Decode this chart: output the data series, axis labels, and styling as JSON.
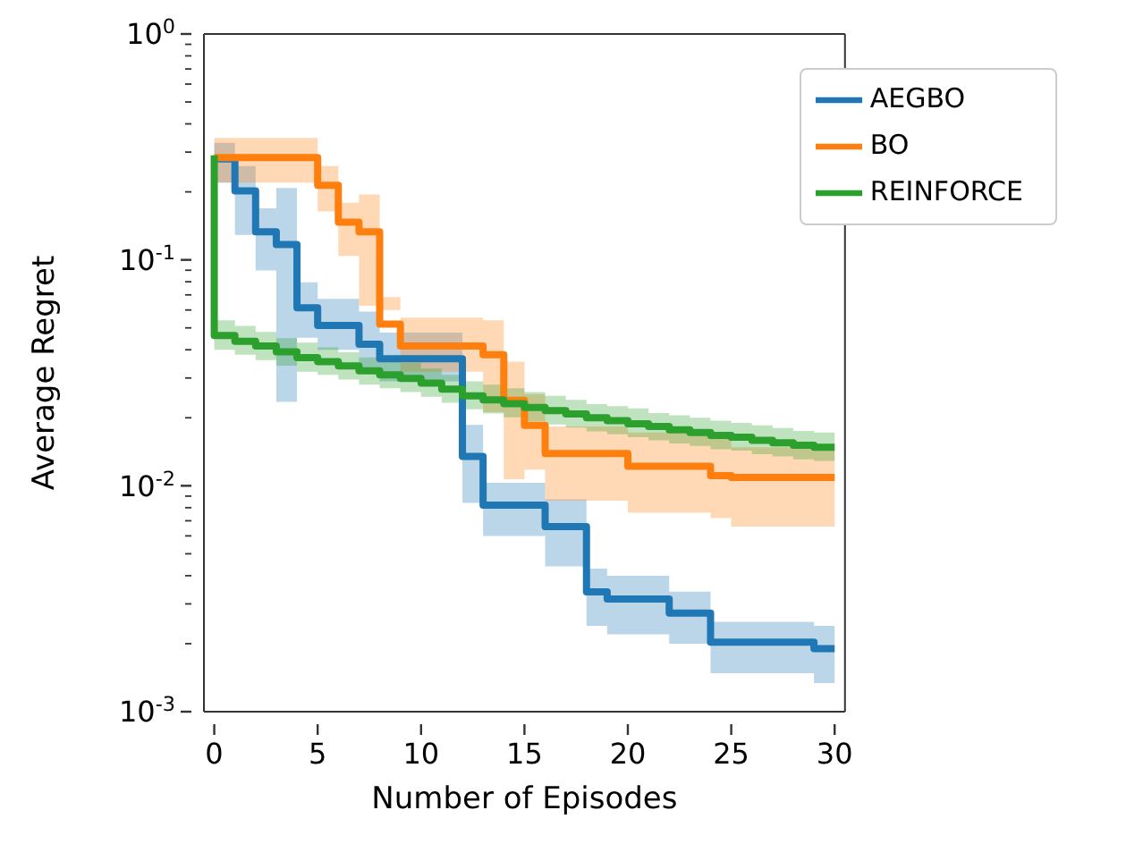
{
  "chart_data": {
    "type": "step",
    "xlabel": "Number of Episodes",
    "ylabel": "Average Regret",
    "x": [
      0,
      1,
      2,
      3,
      4,
      5,
      6,
      7,
      8,
      9,
      10,
      11,
      12,
      13,
      14,
      15,
      16,
      17,
      18,
      19,
      20,
      21,
      22,
      23,
      24,
      25,
      26,
      27,
      28,
      29,
      30
    ],
    "series": [
      {
        "name": "AEGBO",
        "color": "#1f77b4",
        "values": [
          0.28,
          0.2018,
          0.133,
          0.117,
          0.0614,
          0.0513,
          0.0513,
          0.0423,
          0.0365,
          0.0365,
          0.0365,
          0.0365,
          0.0135,
          0.0082,
          0.0082,
          0.0082,
          0.0066,
          0.0066,
          0.00339,
          0.00315,
          0.00315,
          0.00315,
          0.00273,
          0.00273,
          0.00203,
          0.00203,
          0.00203,
          0.00203,
          0.00203,
          0.0019,
          0.0019
        ],
        "upper": [
          0.33,
          0.26,
          0.169,
          0.208,
          0.0795,
          0.0672,
          0.0672,
          0.059,
          0.0477,
          0.0477,
          0.0477,
          0.0477,
          0.0186,
          0.0103,
          0.0103,
          0.0103,
          0.0087,
          0.0087,
          0.0043,
          0.004,
          0.004,
          0.004,
          0.0034,
          0.0034,
          0.0025,
          0.0025,
          0.0025,
          0.0025,
          0.0025,
          0.0024,
          0.0024
        ],
        "lower": [
          0.22,
          0.129,
          0.0897,
          0.0235,
          0.0452,
          0.04,
          0.04,
          0.0333,
          0.029,
          0.029,
          0.029,
          0.029,
          0.0084,
          0.006,
          0.006,
          0.006,
          0.0044,
          0.0044,
          0.0024,
          0.0022,
          0.0022,
          0.0022,
          0.002,
          0.002,
          0.00148,
          0.00148,
          0.00148,
          0.00148,
          0.00148,
          0.00134,
          0.00134
        ]
      },
      {
        "name": "BO",
        "color": "#ff7f0e",
        "values": [
          0.284,
          0.284,
          0.284,
          0.284,
          0.284,
          0.214,
          0.147,
          0.133,
          0.052,
          0.0416,
          0.0416,
          0.0416,
          0.0416,
          0.038,
          0.0239,
          0.0185,
          0.0139,
          0.0139,
          0.0139,
          0.0139,
          0.0122,
          0.0122,
          0.0122,
          0.0122,
          0.0111,
          0.0109,
          0.0109,
          0.0109,
          0.0109,
          0.0109,
          0.0109
        ],
        "upper": [
          0.347,
          0.347,
          0.347,
          0.347,
          0.347,
          0.26,
          0.179,
          0.195,
          0.0685,
          0.0555,
          0.0555,
          0.0555,
          0.0555,
          0.054,
          0.0354,
          0.0254,
          0.0183,
          0.0183,
          0.0183,
          0.0183,
          0.0172,
          0.0172,
          0.0172,
          0.0172,
          0.0162,
          0.0148,
          0.0148,
          0.0148,
          0.0148,
          0.0148,
          0.0148
        ],
        "lower": [
          0.22,
          0.22,
          0.22,
          0.22,
          0.22,
          0.164,
          0.104,
          0.0626,
          0.06,
          0.032,
          0.032,
          0.032,
          0.032,
          0.0212,
          0.0107,
          0.0118,
          0.0086,
          0.0086,
          0.0086,
          0.0086,
          0.0076,
          0.0076,
          0.0076,
          0.0076,
          0.0072,
          0.0066,
          0.0066,
          0.0066,
          0.0066,
          0.0066,
          0.0066
        ]
      },
      {
        "name": "REINFORCE",
        "color": "#2ca02c",
        "x": [
          0,
          0,
          1,
          2,
          3,
          4,
          5,
          6,
          7,
          8,
          9,
          10,
          11,
          12,
          13,
          14,
          15,
          16,
          17,
          18,
          19,
          20,
          21,
          22,
          23,
          24,
          25,
          26,
          27,
          28,
          29,
          30
        ],
        "values": [
          0.29,
          0.0463,
          0.0436,
          0.0416,
          0.0392,
          0.0369,
          0.0354,
          0.0339,
          0.0323,
          0.031,
          0.0299,
          0.0285,
          0.0268,
          0.025,
          0.024,
          0.0231,
          0.0222,
          0.0215,
          0.0208,
          0.02,
          0.0194,
          0.0188,
          0.0183,
          0.0177,
          0.0172,
          0.0167,
          0.0164,
          0.0159,
          0.0155,
          0.0151,
          0.0148,
          0.0148
        ],
        "upper": [
          null,
          0.054,
          0.051,
          0.048,
          0.045,
          0.043,
          0.041,
          0.039,
          0.037,
          0.036,
          0.035,
          0.033,
          0.031,
          0.029,
          0.028,
          0.027,
          0.026,
          0.025,
          0.024,
          0.023,
          0.0225,
          0.022,
          0.021,
          0.0205,
          0.02,
          0.0194,
          0.019,
          0.0185,
          0.018,
          0.0175,
          0.0172,
          0.0172
        ],
        "lower": [
          null,
          0.04,
          0.038,
          0.036,
          0.034,
          0.032,
          0.031,
          0.0295,
          0.028,
          0.027,
          0.026,
          0.0248,
          0.0233,
          0.0218,
          0.0209,
          0.0201,
          0.0193,
          0.0187,
          0.0181,
          0.0174,
          0.0169,
          0.0164,
          0.0159,
          0.0154,
          0.015,
          0.0145,
          0.0143,
          0.0138,
          0.0135,
          0.0131,
          0.0129,
          0.0129
        ]
      }
    ],
    "xlim": [
      -0.5,
      30.5
    ],
    "xticks": [
      0,
      5,
      10,
      15,
      20,
      25,
      30
    ],
    "ylim": [
      0.001,
      1
    ],
    "log": true,
    "yticks": [
      {
        "value": 0.001,
        "label": "10$^{-3}$"
      },
      {
        "value": 0.002,
        "label": null
      },
      {
        "value": 0.003,
        "label": null
      },
      {
        "value": 0.004,
        "label": null
      },
      {
        "value": 0.005,
        "label": null
      },
      {
        "value": 0.006,
        "label": null
      },
      {
        "value": 0.007,
        "label": null
      },
      {
        "value": 0.008,
        "label": null
      },
      {
        "value": 0.009,
        "label": null
      },
      {
        "value": 0.01,
        "label": "10$^{-2}$"
      },
      {
        "value": 0.02,
        "label": null
      },
      {
        "value": 0.03,
        "label": null
      },
      {
        "value": 0.04,
        "label": null
      },
      {
        "value": 0.05,
        "label": null
      },
      {
        "value": 0.06,
        "label": null
      },
      {
        "value": 0.07,
        "label": null
      },
      {
        "value": 0.08,
        "label": null
      },
      {
        "value": 0.09,
        "label": null
      },
      {
        "value": 0.1,
        "label": "10$^{-1}$"
      },
      {
        "value": 0.2,
        "label": null
      },
      {
        "value": 0.3,
        "label": null
      },
      {
        "value": 0.4,
        "label": null
      },
      {
        "value": 0.5,
        "label": null
      },
      {
        "value": 0.6,
        "label": null
      },
      {
        "value": 0.7,
        "label": null
      },
      {
        "value": 0.8,
        "label": null
      },
      {
        "value": 0.9,
        "label": null
      },
      {
        "value": 1,
        "label": "10$^{0}$"
      }
    ],
    "legend": "top right",
    "grid": false
  }
}
